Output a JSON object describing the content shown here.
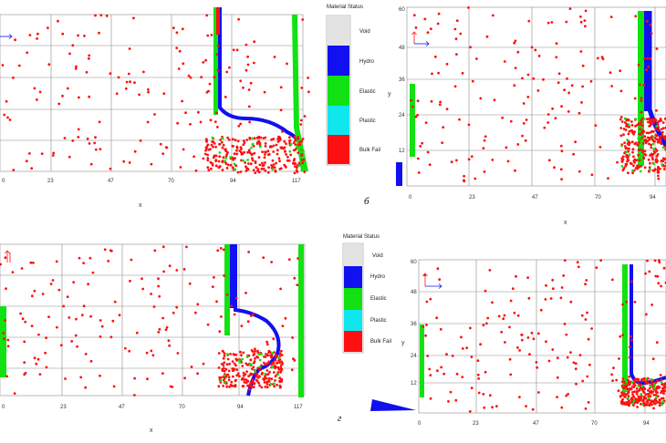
{
  "colors": {
    "void": "#e3e3e3",
    "hydro": "#1010f0",
    "elastic": "#12e212",
    "plastic": "#10e6ee",
    "bulk_fail": "#ff1010",
    "grid": "#8a8a8a"
  },
  "legend": {
    "title": "Material Status",
    "items": [
      {
        "label": "Void",
        "color": "#e3e3e3"
      },
      {
        "label": "Hydro",
        "color": "#1010f0"
      },
      {
        "label": "Elastic",
        "color": "#12e212"
      },
      {
        "label": "Plastic",
        "color": "#10e6ee"
      },
      {
        "label": "Bulk Fail",
        "color": "#ff1010"
      }
    ]
  },
  "panels": [
    {
      "id": "a",
      "letter": "",
      "x_label": "x",
      "y_label": "",
      "x_ticks": [
        "0",
        "23",
        "47",
        "70",
        "94",
        "117"
      ],
      "y_ticks": [],
      "axis_icon": "right-arrow-icon"
    },
    {
      "id": "b",
      "letter": "б",
      "x_label": "x",
      "y_label": "y",
      "x_ticks": [
        "0",
        "23",
        "47",
        "70",
        "94"
      ],
      "y_ticks": [
        "60",
        "48",
        "36",
        "24",
        "12"
      ],
      "axis_icon": "xy-axes-icon"
    },
    {
      "id": "c",
      "letter": "",
      "x_label": "x",
      "y_label": "",
      "x_ticks": [
        "0",
        "23",
        "47",
        "70",
        "94",
        "117"
      ],
      "y_ticks": [],
      "axis_icon": "up-arrow-icon"
    },
    {
      "id": "d",
      "letter": "г",
      "x_label": "",
      "y_label": "y",
      "x_ticks": [
        "0",
        "23",
        "47",
        "70",
        "94"
      ],
      "y_ticks": [
        "60",
        "48",
        "36",
        "24",
        "12"
      ],
      "axis_icon": "xy-axes-icon"
    }
  ]
}
